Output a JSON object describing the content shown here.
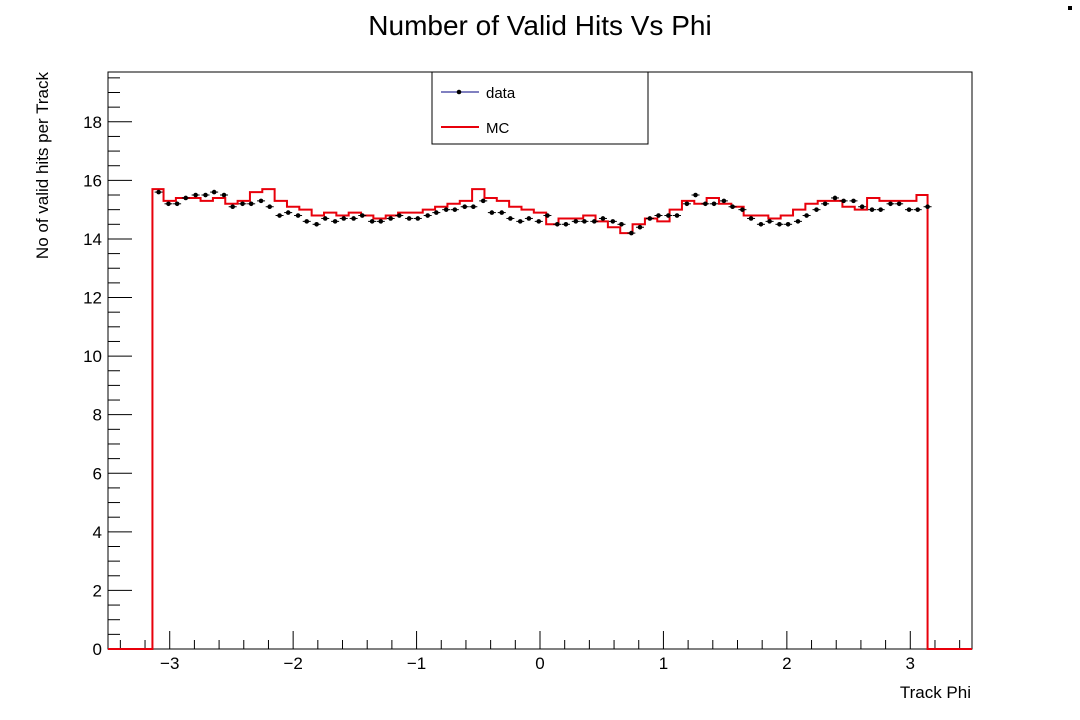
{
  "chart_data": {
    "type": "line",
    "title": "Number of Valid Hits Vs Phi",
    "xlabel": "Track Phi",
    "ylabel": "No of valid hits per Track",
    "xlim": [
      -3.5,
      3.5
    ],
    "ylim": [
      0,
      19.7
    ],
    "x_ticks": [
      -3,
      -2,
      -1,
      0,
      1,
      2,
      3
    ],
    "x_tick_labels": [
      "−3",
      "−2",
      "−1",
      "0",
      "1",
      "2",
      "3"
    ],
    "y_ticks": [
      0,
      2,
      4,
      6,
      8,
      10,
      12,
      14,
      16,
      18
    ],
    "y_tick_labels": [
      "0",
      "2",
      "4",
      "6",
      "8",
      "10",
      "12",
      "14",
      "16",
      "18"
    ],
    "grid": false,
    "legend_position": "top-center",
    "legend": [
      {
        "name": "data",
        "style": "marker-line",
        "color": "#000080"
      },
      {
        "name": "MC",
        "style": "line",
        "color": "#e8000b"
      }
    ],
    "series": [
      {
        "name": "data",
        "style": "markers",
        "color": "#000000",
        "x": [
          -3.09,
          -3.01,
          -2.94,
          -2.87,
          -2.79,
          -2.71,
          -2.64,
          -2.56,
          -2.49,
          -2.41,
          -2.34,
          -2.26,
          -2.19,
          -2.11,
          -2.04,
          -1.96,
          -1.89,
          -1.81,
          -1.74,
          -1.66,
          -1.59,
          -1.51,
          -1.44,
          -1.36,
          -1.29,
          -1.21,
          -1.14,
          -1.06,
          -0.99,
          -0.91,
          -0.84,
          -0.76,
          -0.69,
          -0.61,
          -0.54,
          -0.46,
          -0.39,
          -0.31,
          -0.24,
          -0.16,
          -0.09,
          -0.01,
          0.06,
          0.14,
          0.21,
          0.29,
          0.36,
          0.44,
          0.51,
          0.59,
          0.66,
          0.74,
          0.81,
          0.89,
          0.96,
          1.04,
          1.11,
          1.19,
          1.26,
          1.34,
          1.41,
          1.49,
          1.56,
          1.64,
          1.71,
          1.79,
          1.86,
          1.94,
          2.01,
          2.09,
          2.16,
          2.24,
          2.31,
          2.39,
          2.46,
          2.54,
          2.61,
          2.69,
          2.76,
          2.84,
          2.91,
          2.99,
          3.06,
          3.14
        ],
        "y": [
          15.6,
          15.2,
          15.2,
          15.4,
          15.5,
          15.5,
          15.6,
          15.5,
          15.1,
          15.2,
          15.2,
          15.3,
          15.1,
          14.8,
          14.9,
          14.8,
          14.6,
          14.5,
          14.7,
          14.6,
          14.7,
          14.7,
          14.8,
          14.6,
          14.6,
          14.7,
          14.8,
          14.7,
          14.7,
          14.8,
          14.9,
          15.0,
          15.0,
          15.1,
          15.1,
          15.3,
          14.9,
          14.9,
          14.7,
          14.6,
          14.7,
          14.6,
          14.8,
          14.5,
          14.5,
          14.6,
          14.6,
          14.6,
          14.7,
          14.6,
          14.5,
          14.2,
          14.4,
          14.7,
          14.8,
          14.8,
          14.8,
          15.2,
          15.5,
          15.2,
          15.2,
          15.3,
          15.1,
          15.0,
          14.7,
          14.5,
          14.6,
          14.5,
          14.5,
          14.6,
          14.8,
          15.0,
          15.2,
          15.4,
          15.3,
          15.3,
          15.1,
          15.0,
          15.0,
          15.2,
          15.2,
          15.0,
          15.0,
          15.1
        ]
      },
      {
        "name": "MC",
        "style": "step",
        "color": "#e8000b",
        "bin_edges": [
          -3.14,
          -3.05,
          -2.95,
          -2.85,
          -2.75,
          -2.65,
          -2.55,
          -2.45,
          -2.35,
          -2.25,
          -2.15,
          -2.05,
          -1.95,
          -1.85,
          -1.75,
          -1.65,
          -1.55,
          -1.45,
          -1.35,
          -1.25,
          -1.15,
          -1.05,
          -0.95,
          -0.85,
          -0.75,
          -0.65,
          -0.55,
          -0.45,
          -0.35,
          -0.25,
          -0.15,
          -0.05,
          0.05,
          0.15,
          0.25,
          0.35,
          0.45,
          0.55,
          0.65,
          0.75,
          0.85,
          0.95,
          1.05,
          1.15,
          1.25,
          1.35,
          1.45,
          1.55,
          1.65,
          1.75,
          1.85,
          1.95,
          2.05,
          2.15,
          2.25,
          2.35,
          2.45,
          2.55,
          2.65,
          2.75,
          2.85,
          2.95,
          3.05,
          3.14
        ],
        "values": [
          15.7,
          15.3,
          15.4,
          15.4,
          15.3,
          15.4,
          15.2,
          15.3,
          15.6,
          15.7,
          15.3,
          15.1,
          15.0,
          14.8,
          14.9,
          14.8,
          14.9,
          14.8,
          14.7,
          14.8,
          14.9,
          14.9,
          15.0,
          15.1,
          15.2,
          15.3,
          15.7,
          15.4,
          15.3,
          15.1,
          15.0,
          14.9,
          14.5,
          14.7,
          14.7,
          14.8,
          14.6,
          14.4,
          14.2,
          14.5,
          14.7,
          14.6,
          15.0,
          15.3,
          15.2,
          15.4,
          15.2,
          15.1,
          14.8,
          14.8,
          14.7,
          14.8,
          15.0,
          15.2,
          15.3,
          15.3,
          15.1,
          15.0,
          15.4,
          15.3,
          15.3,
          15.3,
          15.5
        ]
      }
    ]
  }
}
